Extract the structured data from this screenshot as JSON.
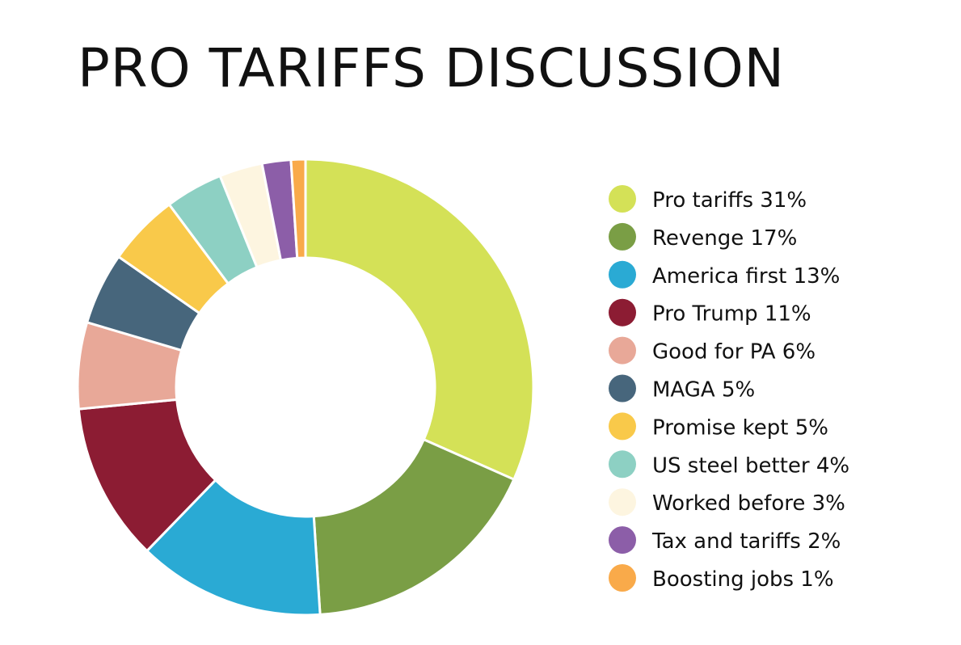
{
  "chart_data": {
    "type": "pie",
    "variant": "donut",
    "title": "PRO TARIFFS DISCUSSION",
    "unit": "%",
    "legend_position": "right",
    "slices": [
      {
        "label": "Pro tariffs",
        "value": 31,
        "legend": "Pro tariffs 31%",
        "color": "#d4e157"
      },
      {
        "label": "Revenge",
        "value": 17,
        "legend": "Revenge 17%",
        "color": "#7a9e45"
      },
      {
        "label": "America first",
        "value": 13,
        "legend": "America first 13%",
        "color": "#2aaad4"
      },
      {
        "label": "Pro Trump",
        "value": 11,
        "legend": "Pro Trump 11%",
        "color": "#8c1c33"
      },
      {
        "label": "Good for PA",
        "value": 6,
        "legend": "Good for PA 6%",
        "color": "#e8a898"
      },
      {
        "label": "MAGA",
        "value": 5,
        "legend": "MAGA 5%",
        "color": "#47667c"
      },
      {
        "label": "Promise kept",
        "value": 5,
        "legend": "Promise kept 5%",
        "color": "#f9c94a"
      },
      {
        "label": "US steel better",
        "value": 4,
        "legend": "US steel better 4%",
        "color": "#8dd0c3"
      },
      {
        "label": "Worked before",
        "value": 3,
        "legend": "Worked before 3%",
        "color": "#fdf5e0"
      },
      {
        "label": "Tax and tariffs",
        "value": 2,
        "legend": "Tax and tariffs 2%",
        "color": "#8c5ea8"
      },
      {
        "label": "Boosting jobs",
        "value": 1,
        "legend": "Boosting jobs 1%",
        "color": "#f9aa4a"
      }
    ]
  }
}
